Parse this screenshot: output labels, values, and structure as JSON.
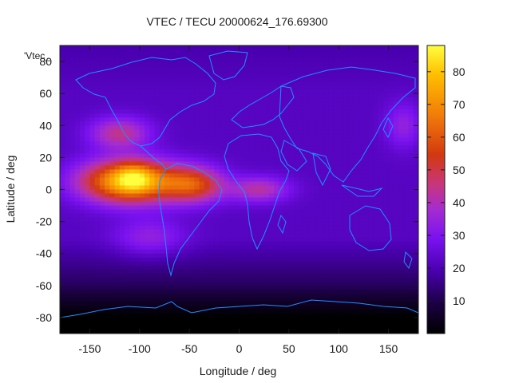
{
  "chart_data": {
    "type": "heatmap",
    "title": "VTEC / TECU 20000624_176.69300",
    "xlabel": "Longitude / deg",
    "ylabel": "Latitude / deg",
    "key_label": "'Vtec_",
    "xlim": [
      -180,
      180
    ],
    "ylim": [
      -90,
      90
    ],
    "x_ticks": [
      -150,
      -100,
      -50,
      0,
      50,
      100,
      150
    ],
    "y_ticks": [
      -80,
      -60,
      -40,
      -20,
      0,
      20,
      40,
      60,
      80
    ],
    "colorbar": {
      "range": [
        0,
        88
      ],
      "ticks": [
        10,
        20,
        30,
        40,
        50,
        60,
        70,
        80
      ],
      "palette": [
        "#000000",
        "#1a003f",
        "#4a00b0",
        "#7a12f0",
        "#a52cd0",
        "#c8367a",
        "#d23810",
        "#f0780a",
        "#ffbf00",
        "#ffff40"
      ]
    },
    "grid": "off",
    "description_field": {
      "background_vtec": 22,
      "main_peak": {
        "lon": -105,
        "lat": 8,
        "vtec": 84
      },
      "features": [
        {
          "lon": -110,
          "lat": 5,
          "sx": 48,
          "sy": 13,
          "amp": 58
        },
        {
          "lon": -45,
          "lat": 3,
          "sx": 30,
          "sy": 11,
          "amp": 32
        },
        {
          "lon": 20,
          "lat": 0,
          "sx": 30,
          "sy": 8,
          "amp": 20
        },
        {
          "lon": -120,
          "lat": 35,
          "sx": 30,
          "sy": 10,
          "amp": 22
        },
        {
          "lon": 165,
          "lat": 40,
          "sx": 18,
          "sy": 14,
          "amp": 12
        },
        {
          "lon": -90,
          "lat": -30,
          "sx": 35,
          "sy": 12,
          "amp": 12
        }
      ]
    },
    "coastline_color": "#1e90ff"
  }
}
